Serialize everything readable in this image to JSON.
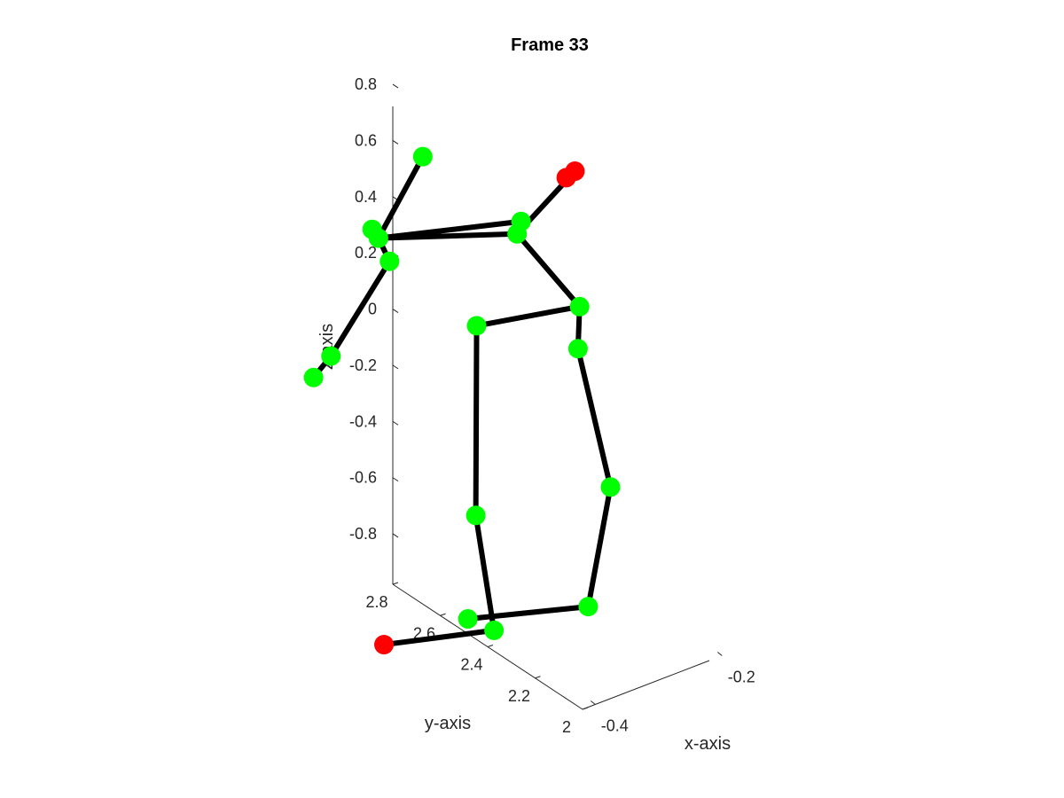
{
  "chart_data": {
    "type": "scatter",
    "title": "Frame 33",
    "xlabel": "x-axis",
    "ylabel": "y-axis",
    "zlabel": "z-axis",
    "x_ticks": [
      "-0.4",
      "-0.2"
    ],
    "y_ticks": [
      "2",
      "2.2",
      "2.4",
      "2.6",
      "2.8"
    ],
    "z_ticks": [
      "0.8",
      "0.6",
      "0.4",
      "0.2",
      "0",
      "-0.2",
      "-0.4",
      "-0.6",
      "-0.8"
    ],
    "grid": false,
    "colors": {
      "joint": "#00ff00",
      "highlight": "#ff0000",
      "bone": "#000000",
      "axis": "#262626"
    },
    "joints": [
      {
        "name": "head",
        "x": -0.44,
        "y": 2.62,
        "z": 0.66,
        "highlight": false
      },
      {
        "name": "neck",
        "x": -0.49,
        "y": 2.7,
        "z": 0.4,
        "highlight": false
      },
      {
        "name": "spine-shoulder",
        "x": -0.48,
        "y": 2.7,
        "z": 0.36,
        "highlight": false
      },
      {
        "name": "shoulder-a",
        "x": -0.47,
        "y": 2.68,
        "z": 0.28,
        "highlight": false
      },
      {
        "name": "elbow-a",
        "x": -0.54,
        "y": 2.74,
        "z": -0.03,
        "highlight": false
      },
      {
        "name": "hand-a",
        "x": -0.56,
        "y": 2.76,
        "z": -0.1,
        "highlight": false
      },
      {
        "name": "shoulder-b",
        "x": -0.3,
        "y": 2.58,
        "z": 0.33,
        "highlight": false
      },
      {
        "name": "elbow-b",
        "x": -0.31,
        "y": 2.57,
        "z": 0.3,
        "highlight": false
      },
      {
        "name": "hand-b",
        "x": -0.2,
        "y": 2.62,
        "z": 0.4,
        "highlight": true
      },
      {
        "name": "hand-b-tip",
        "x": -0.21,
        "y": 2.63,
        "z": 0.38,
        "highlight": true
      },
      {
        "name": "hip-a",
        "x": -0.4,
        "y": 2.5,
        "z": 0.09,
        "highlight": false
      },
      {
        "name": "hip-b",
        "x": -0.26,
        "y": 2.44,
        "z": 0.07,
        "highlight": false
      },
      {
        "name": "spine-base",
        "x": -0.27,
        "y": 2.42,
        "z": -0.06,
        "highlight": false
      },
      {
        "name": "knee-a",
        "x": -0.42,
        "y": 2.45,
        "z": -0.54,
        "highlight": false
      },
      {
        "name": "knee-b",
        "x": -0.26,
        "y": 2.31,
        "z": -0.5,
        "highlight": false
      },
      {
        "name": "ankle-b",
        "x": -0.31,
        "y": 2.27,
        "z": -0.86,
        "highlight": false
      },
      {
        "name": "ankle-a",
        "x": -0.44,
        "y": 2.43,
        "z": -0.88,
        "highlight": false
      },
      {
        "name": "foot-a",
        "x": -0.41,
        "y": 2.4,
        "z": -0.93,
        "highlight": false
      },
      {
        "name": "toe-a",
        "x": -0.52,
        "y": 2.57,
        "z": -0.98,
        "highlight": true
      }
    ],
    "bones": [
      [
        "head",
        "spine-shoulder"
      ],
      [
        "neck",
        "spine-shoulder"
      ],
      [
        "spine-shoulder",
        "shoulder-a"
      ],
      [
        "shoulder-a",
        "elbow-a"
      ],
      [
        "elbow-a",
        "hand-a"
      ],
      [
        "spine-shoulder",
        "shoulder-b"
      ],
      [
        "spine-shoulder",
        "elbow-b"
      ],
      [
        "elbow-b",
        "hand-b"
      ],
      [
        "elbow-b",
        "hip-b"
      ],
      [
        "hip-b",
        "hip-a"
      ],
      [
        "hip-b",
        "spine-base"
      ],
      [
        "spine-base",
        "knee-b"
      ],
      [
        "knee-b",
        "ankle-b"
      ],
      [
        "ankle-b",
        "ankle-a"
      ],
      [
        "hip-a",
        "knee-a"
      ],
      [
        "knee-a",
        "foot-a"
      ],
      [
        "foot-a",
        "toe-a"
      ]
    ]
  }
}
